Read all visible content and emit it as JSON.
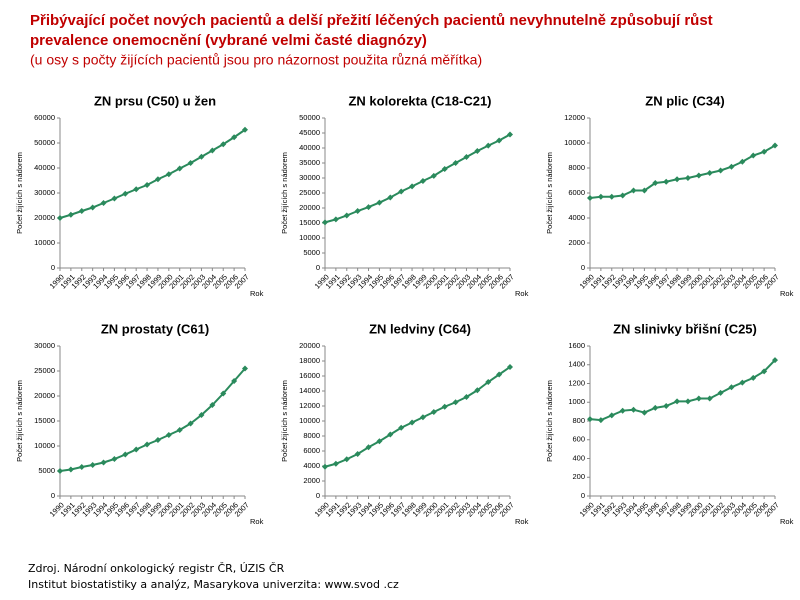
{
  "header": {
    "title": [
      "Přibývající počet nových pacientů a delší přežití léčených pacientů nevyhnutelně způsobují růst",
      "prevalence onemocnění (vybrané velmi časté diagnózy)"
    ],
    "subtitle": "(u osy s počty žijících pacientů jsou pro názornost použita různá měřítka)"
  },
  "source": [
    "Zdroj. Národní onkologický registr ČR, ÚZIS ČR",
    "Institut biostatistiky a analýz, Masarykova univerzita: www.svod .cz"
  ],
  "chart_data": [
    {
      "type": "line",
      "title": "ZN prsu (C50) u žen",
      "y_label": "Počet žijících s nádorem",
      "x_label": "Rok",
      "color": "#2a8a5c",
      "x": [
        1990,
        1991,
        1992,
        1993,
        1994,
        1995,
        1996,
        1997,
        1998,
        1999,
        2000,
        2001,
        2002,
        2003,
        2004,
        2005,
        2006,
        2007
      ],
      "xlim": [
        1990,
        2007
      ],
      "values": [
        20000,
        21300,
        22800,
        24200,
        26000,
        27800,
        29700,
        31500,
        33200,
        35500,
        37500,
        39800,
        42000,
        44500,
        47000,
        49500,
        52300,
        55300
      ],
      "ylim": [
        0,
        60000
      ],
      "yticks": [
        0,
        10000,
        20000,
        30000,
        40000,
        50000,
        60000
      ]
    },
    {
      "type": "line",
      "title": "ZN kolorekta (C18-C21)",
      "y_label": "Počet žijících s nádorem",
      "x_label": "Rok",
      "color": "#2a8a5c",
      "x": [
        1990,
        1991,
        1992,
        1993,
        1994,
        1995,
        1996,
        1997,
        1998,
        1999,
        2000,
        2001,
        2002,
        2003,
        2004,
        2005,
        2006,
        2007
      ],
      "xlim": [
        1990,
        2007
      ],
      "values": [
        15200,
        16200,
        17500,
        19000,
        20300,
        21800,
        23500,
        25500,
        27200,
        29000,
        30700,
        33000,
        35000,
        37000,
        39000,
        40800,
        42500,
        44500
      ],
      "ylim": [
        0,
        50000
      ],
      "yticks": [
        0,
        5000,
        10000,
        15000,
        20000,
        25000,
        30000,
        35000,
        40000,
        45000,
        50000
      ]
    },
    {
      "type": "line",
      "title": "ZN plic (C34)",
      "y_label": "Počet žijících s nádorem",
      "x_label": "Rok",
      "color": "#2a8a5c",
      "x": [
        1990,
        1991,
        1992,
        1993,
        1994,
        1995,
        1996,
        1997,
        1998,
        1999,
        2000,
        2001,
        2002,
        2003,
        2004,
        2005,
        2006,
        2007
      ],
      "xlim": [
        1990,
        2007
      ],
      "values": [
        5600,
        5700,
        5700,
        5800,
        6200,
        6200,
        6800,
        6900,
        7100,
        7200,
        7400,
        7600,
        7800,
        8100,
        8500,
        9000,
        9300,
        9800
      ],
      "ylim": [
        0,
        12000
      ],
      "yticks": [
        0,
        2000,
        4000,
        6000,
        8000,
        10000,
        12000
      ]
    },
    {
      "type": "line",
      "title": "ZN prostaty (C61)",
      "y_label": "Počet žijících s nádorem",
      "x_label": "Rok",
      "color": "#2a8a5c",
      "x": [
        1990,
        1991,
        1992,
        1993,
        1994,
        1995,
        1996,
        1997,
        1998,
        1999,
        2000,
        2001,
        2002,
        2003,
        2004,
        2005,
        2006,
        2007
      ],
      "xlim": [
        1990,
        2007
      ],
      "values": [
        5000,
        5300,
        5800,
        6200,
        6700,
        7400,
        8300,
        9300,
        10300,
        11200,
        12200,
        13200,
        14500,
        16200,
        18200,
        20500,
        23000,
        25500
      ],
      "ylim": [
        0,
        30000
      ],
      "yticks": [
        0,
        5000,
        10000,
        15000,
        20000,
        25000,
        30000
      ]
    },
    {
      "type": "line",
      "title": "ZN ledviny (C64)",
      "y_label": "Počet žijících s nádorem",
      "x_label": "Rok",
      "color": "#2a8a5c",
      "x": [
        1990,
        1991,
        1992,
        1993,
        1994,
        1995,
        1996,
        1997,
        1998,
        1999,
        2000,
        2001,
        2002,
        2003,
        2004,
        2005,
        2006,
        2007
      ],
      "xlim": [
        1990,
        2007
      ],
      "values": [
        3900,
        4300,
        4900,
        5600,
        6500,
        7300,
        8200,
        9100,
        9800,
        10500,
        11200,
        11900,
        12500,
        13200,
        14100,
        15200,
        16200,
        17200
      ],
      "ylim": [
        0,
        20000
      ],
      "yticks": [
        0,
        2000,
        4000,
        6000,
        8000,
        10000,
        12000,
        14000,
        16000,
        18000,
        20000
      ]
    },
    {
      "type": "line",
      "title": "ZN slinivky břišní (C25)",
      "y_label": "Počet žijících s nádorem",
      "x_label": "Rok",
      "color": "#2a8a5c",
      "x": [
        1990,
        1991,
        1992,
        1993,
        1994,
        1995,
        1996,
        1997,
        1998,
        1999,
        2000,
        2001,
        2002,
        2003,
        2004,
        2005,
        2006,
        2007
      ],
      "xlim": [
        1990,
        2007
      ],
      "values": [
        820,
        810,
        860,
        910,
        920,
        890,
        940,
        960,
        1010,
        1010,
        1040,
        1040,
        1100,
        1160,
        1210,
        1260,
        1330,
        1450
      ],
      "ylim": [
        0,
        1600
      ],
      "yticks": [
        0,
        200,
        400,
        600,
        800,
        1000,
        1200,
        1400,
        1600
      ]
    }
  ]
}
